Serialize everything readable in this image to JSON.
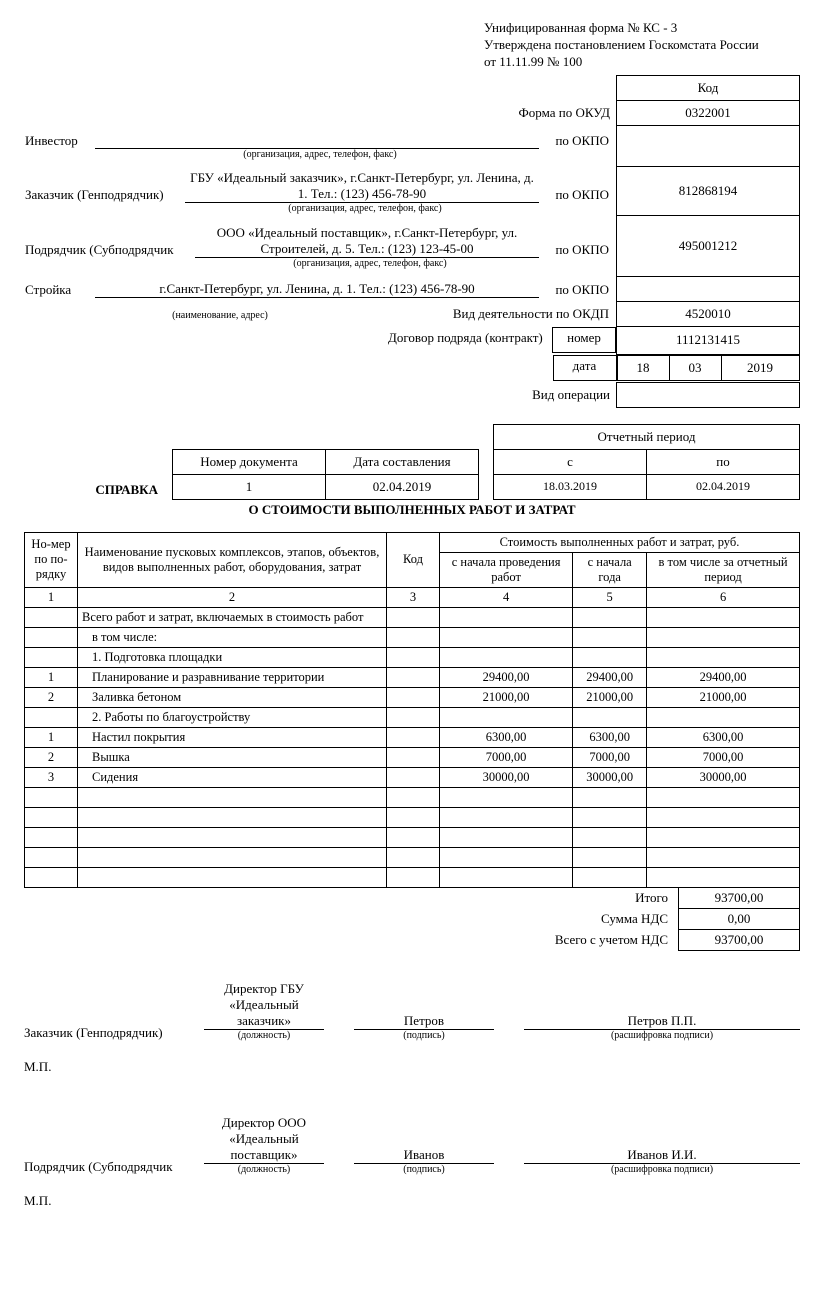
{
  "header": {
    "form_line": "Унифицированная форма № КС - 3",
    "approval_line": "Утверждена постановлением Госкомстата России",
    "date_line": "от 11.11.99 № 100"
  },
  "codes": {
    "code_header": "Код",
    "okud_label": "Форма по ОКУД",
    "okud_value": "0322001",
    "investor_label": "Инвестор",
    "investor_value": "",
    "investor_note": "(организация, адрес, телефон, факс)",
    "investor_okpo_label": "по ОКПО",
    "investor_okpo": "",
    "customer_label": "Заказчик  (Генподрядчик)",
    "customer_value": "ГБУ «Идеальный заказчик», г.Санкт-Петербург, ул. Ленина, д. 1. Тел.: (123) 456-78-90",
    "customer_note": "(организация, адрес, телефон, факс)",
    "customer_okpo_label": "по ОКПО",
    "customer_okpo": "812868194",
    "contractor_label": "Подрядчик (Субподрядчик",
    "contractor_value": "ООО «Идеальный поставщик», г.Санкт-Петербург, ул. Строителей, д. 5. Тел.: (123) 123-45-00",
    "contractor_note": "(организация, адрес, телефон, факс)",
    "contractor_okpo_label": "по ОКПО",
    "contractor_okpo": "495001212",
    "site_label": "Стройка",
    "site_value": "г.Санкт-Петербург, ул. Ленина, д. 1. Тел.: (123) 456-78-90",
    "site_note": "(наименование, адрес)",
    "site_okpo_label": "по ОКПО",
    "site_okpo": "",
    "activity_label": "Вид деятельности по ОКДП",
    "activity_value": "4520010",
    "contract_label": "Договор подряда (контракт)",
    "contract_num_label": "номер",
    "contract_num": "1112131415",
    "contract_date_label": "дата",
    "contract_day": "18",
    "contract_month": "03",
    "contract_year": "2019",
    "operation_label": "Вид операции",
    "operation_value": ""
  },
  "doc": {
    "num_label": "Номер документа",
    "num": "1",
    "date_label": "Дата составления",
    "date": "02.04.2019",
    "period_label": "Отчетный период",
    "from_label": "с",
    "to_label": "по",
    "from": "18.03.2019",
    "to": "02.04.2019",
    "title1": "СПРАВКА",
    "title2": "О СТОИМОСТИ ВЫПОЛНЕННЫХ РАБОТ И ЗАТРАТ"
  },
  "table": {
    "h1": "Но-мер по по-рядку",
    "h2": "Наименование пусковых комплексов, этапов, объектов, видов выполненных работ, оборудования, затрат",
    "h3": "Код",
    "h4": "Стоимость выполненных работ и затрат, руб.",
    "h4a": "с начала проведения работ",
    "h4b": "с начала года",
    "h4c": "в том числе за отчетный период",
    "c1": "1",
    "c2": "2",
    "c3": "3",
    "c4": "4",
    "c5": "5",
    "c6": "6",
    "rows": [
      {
        "n": "",
        "name": "Всего работ и затрат, включаемых в стоимость работ",
        "code": "",
        "a": "",
        "b": "",
        "c": ""
      },
      {
        "n": "",
        "name": "в том числе:",
        "code": "",
        "a": "",
        "b": "",
        "c": "",
        "indent": true
      },
      {
        "n": "",
        "name": "1. Подготовка площадки",
        "code": "",
        "a": "",
        "b": "",
        "c": "",
        "indent": true
      },
      {
        "n": "1",
        "name": "Планирование и разравнивание территории",
        "code": "",
        "a": "29400,00",
        "b": "29400,00",
        "c": "29400,00",
        "indent": true
      },
      {
        "n": "2",
        "name": "Заливка бетоном",
        "code": "",
        "a": "21000,00",
        "b": "21000,00",
        "c": "21000,00",
        "indent": true
      },
      {
        "n": "",
        "name": "2. Работы по благоустройству",
        "code": "",
        "a": "",
        "b": "",
        "c": "",
        "indent": true
      },
      {
        "n": "1",
        "name": "Настил покрытия",
        "code": "",
        "a": "6300,00",
        "b": "6300,00",
        "c": "6300,00",
        "indent": true
      },
      {
        "n": "2",
        "name": "Вышка",
        "code": "",
        "a": "7000,00",
        "b": "7000,00",
        "c": "7000,00",
        "indent": true
      },
      {
        "n": "3",
        "name": "Сидения",
        "code": "",
        "a": "30000,00",
        "b": "30000,00",
        "c": "30000,00",
        "indent": true
      },
      {
        "n": "",
        "name": "",
        "code": "",
        "a": "",
        "b": "",
        "c": ""
      },
      {
        "n": "",
        "name": "",
        "code": "",
        "a": "",
        "b": "",
        "c": ""
      },
      {
        "n": "",
        "name": "",
        "code": "",
        "a": "",
        "b": "",
        "c": ""
      },
      {
        "n": "",
        "name": "",
        "code": "",
        "a": "",
        "b": "",
        "c": ""
      },
      {
        "n": "",
        "name": "",
        "code": "",
        "a": "",
        "b": "",
        "c": ""
      }
    ],
    "total_label": "Итого",
    "total": "93700,00",
    "vat_label": "Сумма НДС",
    "vat": "0,00",
    "grand_label": "Всего с учетом НДС",
    "grand": "93700,00"
  },
  "sign": {
    "customer_role": "Заказчик (Генподрядчик)",
    "customer_pos": "Директор ГБУ «Идеальный заказчик»",
    "customer_sig": "Петров",
    "customer_name": "Петров П.П.",
    "contractor_role": "Подрядчик (Субподрядчик",
    "contractor_pos": "Директор ООО «Идеальный поставщик»",
    "contractor_sig": "Иванов",
    "contractor_name": "Иванов И.И.",
    "pos_note": "(должность)",
    "sig_note": "(подпись)",
    "name_note": "(расшифровка подписи)",
    "mp": "М.П."
  }
}
